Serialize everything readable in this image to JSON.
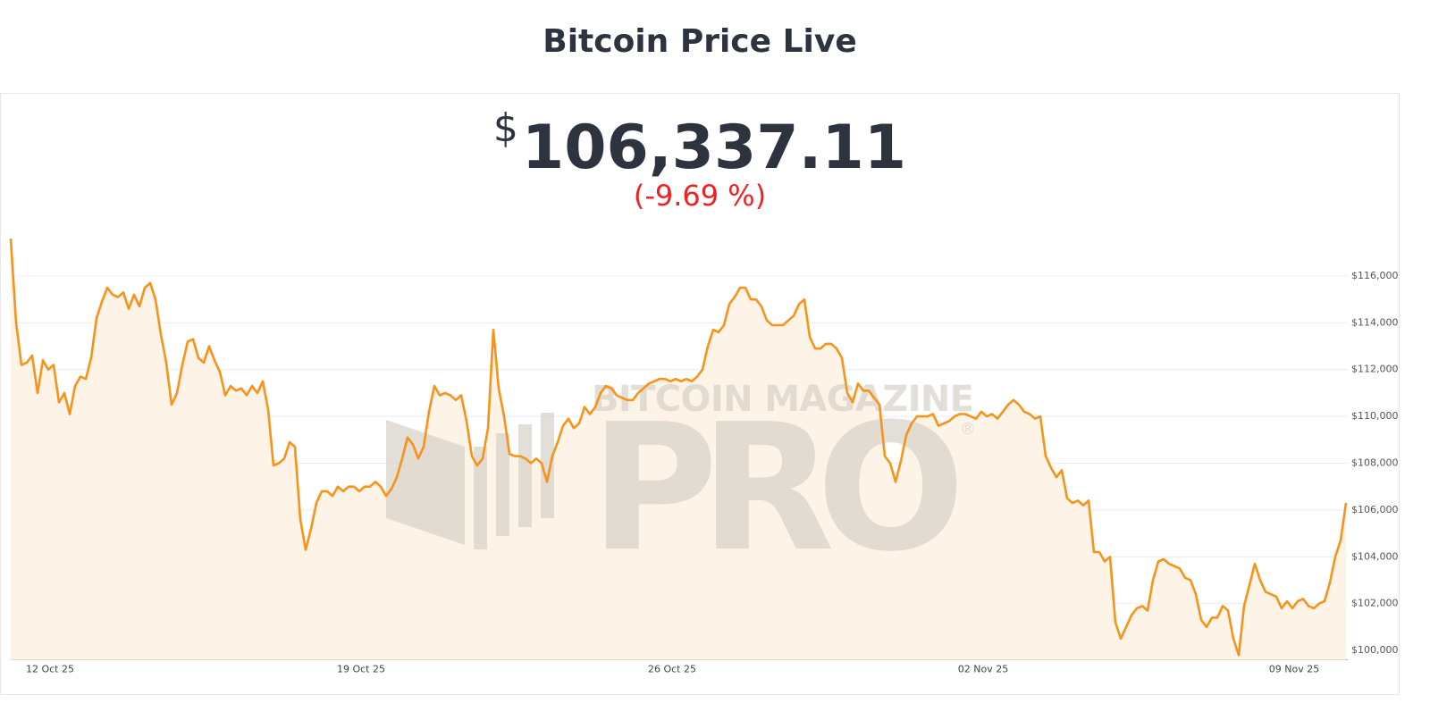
{
  "page_title": "Bitcoin Price Live",
  "currency": "$",
  "price": "106,337.11",
  "change": "(-9.69 %)",
  "watermark": {
    "top": "BITCOIN MAGAZINE",
    "main": "PRO",
    "mark": "®"
  },
  "chart_data": {
    "type": "area",
    "color": "#f7931a",
    "fill": "#fdf4e7",
    "grid": true,
    "ylim": [
      99600,
      117900
    ],
    "yticks": [
      {
        "value": 100000,
        "label": "$100,000"
      },
      {
        "value": 102000,
        "label": "$102,000"
      },
      {
        "value": 104000,
        "label": "$104,000"
      },
      {
        "value": 106000,
        "label": "$106,000"
      },
      {
        "value": 108000,
        "label": "$108,000"
      },
      {
        "value": 110000,
        "label": "$110,000"
      },
      {
        "value": 112000,
        "label": "$112,000"
      },
      {
        "value": 114000,
        "label": "$114,000"
      },
      {
        "value": 116000,
        "label": "$116,000"
      }
    ],
    "categories": [
      null,
      null,
      null,
      null,
      null,
      null,
      null,
      "12 Oct 25",
      null,
      null,
      null,
      null,
      null,
      null,
      null,
      null,
      null,
      null,
      null,
      null,
      null,
      null,
      null,
      null,
      null,
      null,
      null,
      null,
      null,
      null,
      null,
      null,
      null,
      null,
      null,
      null,
      null,
      null,
      null,
      null,
      null,
      null,
      null,
      null,
      null,
      null,
      null,
      null,
      null,
      null,
      null,
      null,
      null,
      null,
      null,
      null,
      null,
      null,
      null,
      null,
      null,
      null,
      null,
      null,
      null,
      "19 Oct 25",
      null,
      null,
      null,
      null,
      null,
      null,
      null,
      null,
      null,
      null,
      null,
      null,
      null,
      null,
      null,
      null,
      null,
      null,
      null,
      null,
      null,
      null,
      null,
      null,
      null,
      null,
      null,
      null,
      null,
      null,
      null,
      null,
      null,
      null,
      null,
      null,
      null,
      null,
      null,
      null,
      null,
      null,
      null,
      null,
      null,
      null,
      null,
      null,
      null,
      null,
      null,
      null,
      null,
      null,
      null,
      null,
      null,
      "26 Oct 25",
      null,
      null,
      null,
      null,
      null,
      null,
      null,
      null,
      null,
      null,
      null,
      null,
      null,
      null,
      null,
      null,
      null,
      null,
      null,
      null,
      null,
      null,
      null,
      null,
      null,
      null,
      null,
      null,
      null,
      null,
      null,
      null,
      null,
      null,
      null,
      null,
      null,
      null,
      null,
      null,
      null,
      null,
      null,
      null,
      null,
      null,
      null,
      null,
      null,
      null,
      null,
      null,
      null,
      null,
      null,
      null,
      null,
      "02 Nov 25",
      null,
      null,
      null,
      null,
      null,
      null,
      null,
      null,
      null,
      null,
      null,
      null,
      null,
      null,
      null,
      null,
      null,
      null,
      null,
      null,
      null,
      null,
      null,
      null,
      null,
      null,
      null,
      null,
      null,
      null,
      null,
      null,
      null,
      null,
      null,
      null,
      null,
      null,
      null,
      null,
      null,
      null,
      null,
      null,
      null,
      null,
      null,
      null,
      null,
      null,
      null,
      null,
      null,
      null,
      null,
      null,
      null,
      "09 Nov 25",
      null,
      null,
      null,
      null,
      null,
      null,
      null,
      null,
      null,
      null
    ],
    "values": [
      117600,
      114000,
      112200,
      112300,
      112600,
      111000,
      112400,
      112000,
      112200,
      110600,
      111000,
      110100,
      111300,
      111700,
      111600,
      112500,
      114200,
      114900,
      115500,
      115200,
      115100,
      115300,
      114600,
      115200,
      114700,
      115500,
      115700,
      115000,
      113500,
      112300,
      110500,
      111000,
      112200,
      113200,
      113300,
      112500,
      112300,
      113000,
      112400,
      111900,
      110900,
      111300,
      111100,
      111200,
      110900,
      111300,
      111000,
      111500,
      110300,
      107900,
      108000,
      108200,
      108900,
      108700,
      105600,
      104300,
      105200,
      106300,
      106800,
      106800,
      106600,
      107000,
      106800,
      107000,
      107000,
      106800,
      107000,
      107000,
      107200,
      107000,
      106600,
      106900,
      107400,
      108200,
      109100,
      108800,
      108200,
      108700,
      110200,
      111300,
      110900,
      111000,
      110900,
      110700,
      110900,
      109800,
      108300,
      107900,
      108200,
      109500,
      113700,
      111200,
      110000,
      108400,
      108300,
      108300,
      108200,
      108000,
      108200,
      108000,
      107200,
      108300,
      108900,
      109600,
      109900,
      109500,
      109700,
      110400,
      110100,
      110400,
      111000,
      111300,
      111200,
      110900,
      110800,
      110700,
      110700,
      111000,
      111200,
      111400,
      111500,
      111600,
      111600,
      111500,
      111600,
      111500,
      111600,
      111500,
      111700,
      112000,
      113000,
      113700,
      113600,
      113900,
      114800,
      115100,
      115500,
      115500,
      115000,
      115000,
      114700,
      114100,
      113900,
      113900,
      113900,
      114100,
      114300,
      114800,
      115000,
      113400,
      112900,
      112900,
      113100,
      113100,
      112900,
      112500,
      111000,
      110600,
      111400,
      111100,
      111100,
      110800,
      110500,
      108300,
      108000,
      107200,
      108100,
      109200,
      109700,
      110000,
      110000,
      110000,
      110100,
      109600,
      109700,
      109800,
      110000,
      110100,
      110100,
      110000,
      109900,
      110200,
      110000,
      110100,
      109900,
      110200,
      110500,
      110700,
      110500,
      110200,
      110100,
      109900,
      110000,
      108300,
      107800,
      107400,
      107700,
      106500,
      106300,
      106400,
      106200,
      106400,
      104200,
      104200,
      103800,
      104000,
      101200,
      100500,
      101000,
      101500,
      101800,
      101900,
      101700,
      103000,
      103800,
      103900,
      103700,
      103600,
      103500,
      103100,
      103000,
      102400,
      101300,
      101000,
      101400,
      101400,
      101900,
      101700,
      100500,
      99800,
      101900,
      102800,
      103700,
      103000,
      102500,
      102400,
      102300,
      101800,
      102100,
      101800,
      102100,
      102200,
      101900,
      101800,
      102000,
      102100,
      102900,
      104000,
      104700,
      106300
    ]
  }
}
